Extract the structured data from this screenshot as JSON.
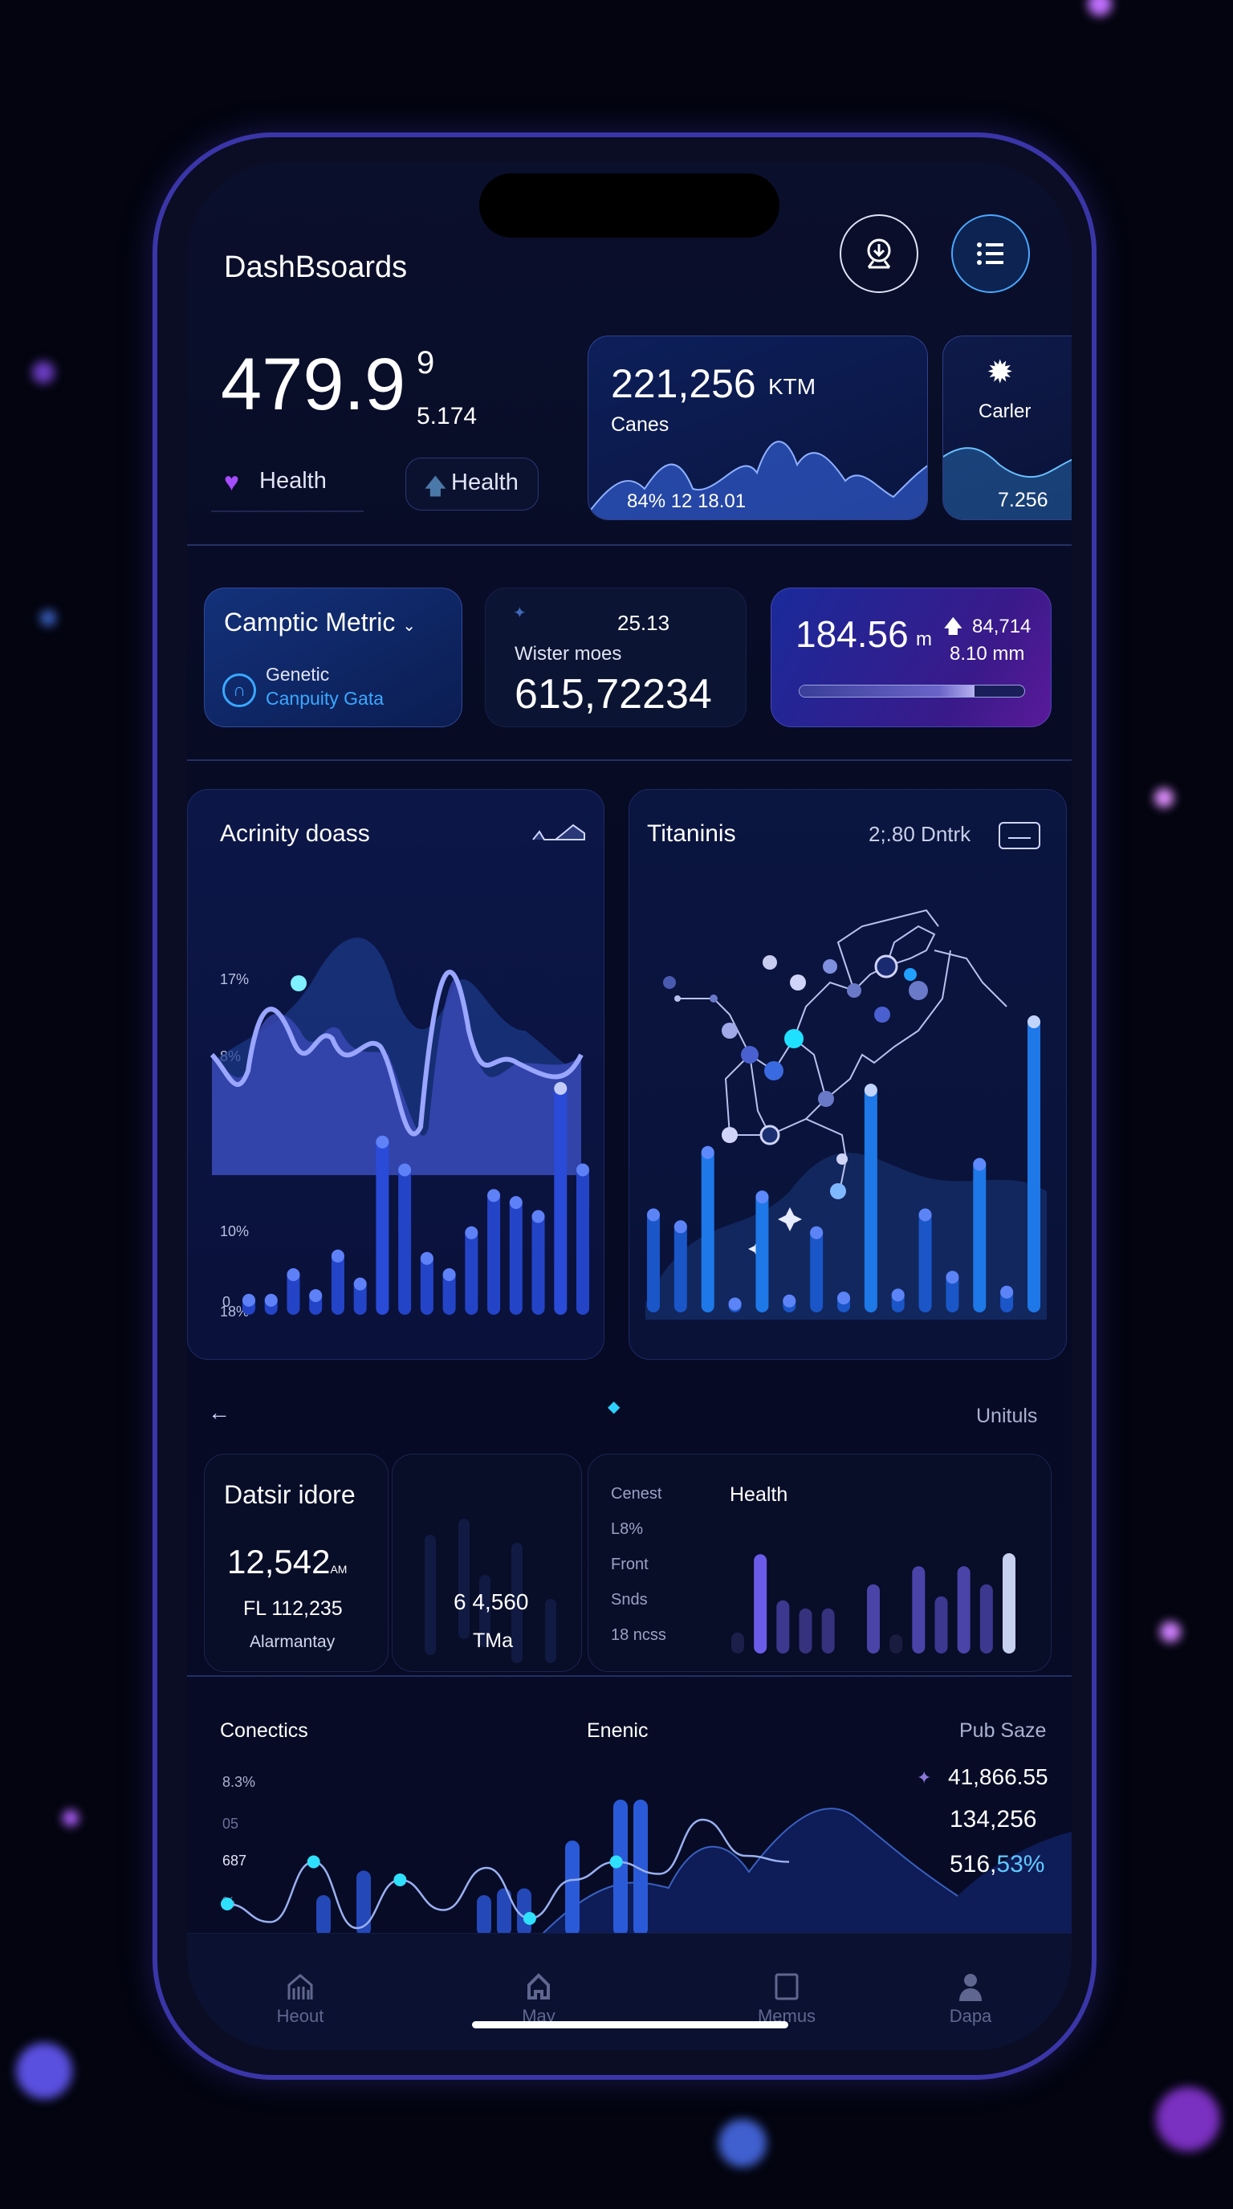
{
  "header": {
    "title": "DashBsoards",
    "download_icon": "download-ring-icon",
    "menu_icon": "list-menu-icon"
  },
  "hero": {
    "value": "479.9",
    "superscript": "9",
    "sub_value": "5.174",
    "health_label": "Health",
    "health_pill_label": "Health"
  },
  "canes_card": {
    "value": "221,256",
    "unit": "KTM",
    "label": "Canes",
    "footer": "84% 12 18.01"
  },
  "carler_card": {
    "label": "Carler",
    "value": "7.256",
    "icon": "gear-icon"
  },
  "metric_cards": {
    "camptic": {
      "title": "Camptic Metric",
      "sub1": "Genetic",
      "sub2": "Canpuity Gata",
      "accent": "#3aa8ff"
    },
    "wister": {
      "top_value": "25.13",
      "label": "Wister moes",
      "value": "615,72234"
    },
    "distance": {
      "value": "184.56",
      "unit": "m",
      "delta": "84,714",
      "sub": "8.10 mm",
      "progress": 0.78
    }
  },
  "activity_card": {
    "title": "Acrinity doass",
    "y_labels": [
      "17%",
      "8%",
      "10%",
      "18%",
      "0"
    ]
  },
  "titaninis_card": {
    "title": "Titaninis",
    "meta": "2;.80 Dntrk"
  },
  "section_row": {
    "right_label": "Unituls"
  },
  "datsir_card": {
    "title": "Datsir idore",
    "value": "12,542",
    "value_suffix": "AM",
    "sub_value": "FL 112,235",
    "label": "Alarmantay"
  },
  "tma_card": {
    "value": "6 4,560",
    "label": "TMa"
  },
  "health_card": {
    "title": "Health",
    "labels": [
      "Cenest",
      "L8%",
      "Front",
      "Snds",
      "18 ncss"
    ]
  },
  "conectics": {
    "title": "Conectics",
    "center_title": "Enenic",
    "right_title": "Pub Saze",
    "y_labels": [
      "8.3%",
      "05",
      "687",
      "%"
    ],
    "stats": [
      "41,866.55",
      "134,256"
    ],
    "stat3_main": "516,",
    "stat3_accent": "53%"
  },
  "nav": [
    {
      "label": "Heout",
      "icon": "chart-icon"
    },
    {
      "label": "May",
      "icon": "home-icon"
    },
    {
      "label": "Memus",
      "icon": "tablet-icon"
    },
    {
      "label": "Dapa",
      "icon": "user-icon"
    }
  ],
  "chart_data": [
    {
      "type": "bar",
      "title": "Acrinity doass",
      "values": [
        9,
        9,
        20,
        11,
        28,
        16,
        77,
        65,
        27,
        20,
        38,
        54,
        51,
        45,
        100,
        65
      ],
      "ylim": [
        0,
        100
      ]
    },
    {
      "type": "bar",
      "title": "Titaninis",
      "values": [
        35,
        31,
        56,
        5,
        41,
        6,
        29,
        7,
        77,
        8,
        35,
        14,
        52,
        9,
        100
      ],
      "ylim": [
        0,
        100
      ]
    },
    {
      "type": "bar",
      "title": "Health",
      "values": [
        21,
        99,
        53,
        45,
        45,
        0,
        69,
        19,
        87,
        57,
        87,
        69,
        100
      ],
      "ylim": [
        0,
        100
      ]
    },
    {
      "type": "line",
      "title": "Conectics",
      "bars": [
        0,
        30,
        48,
        0,
        0,
        30,
        35,
        35,
        0,
        70,
        0,
        100,
        100
      ],
      "line": [
        20,
        5,
        55,
        0,
        40,
        15,
        50,
        8,
        40,
        55,
        45,
        90,
        60,
        55
      ]
    }
  ]
}
